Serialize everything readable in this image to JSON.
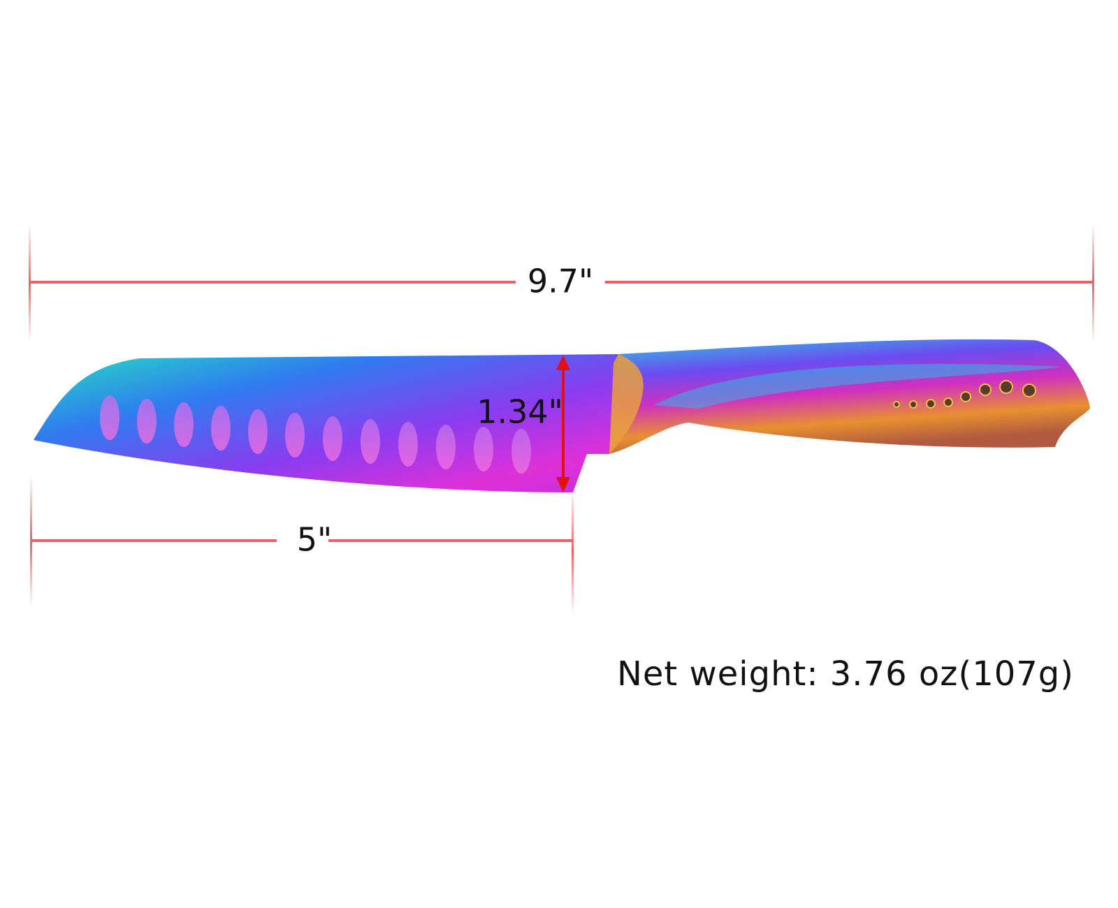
{
  "dimensions": {
    "overall_length": "9.7\"",
    "blade_height": "1.34\"",
    "blade_length": "5\""
  },
  "net_weight": "Net weight: 3.76 oz(107g)"
}
